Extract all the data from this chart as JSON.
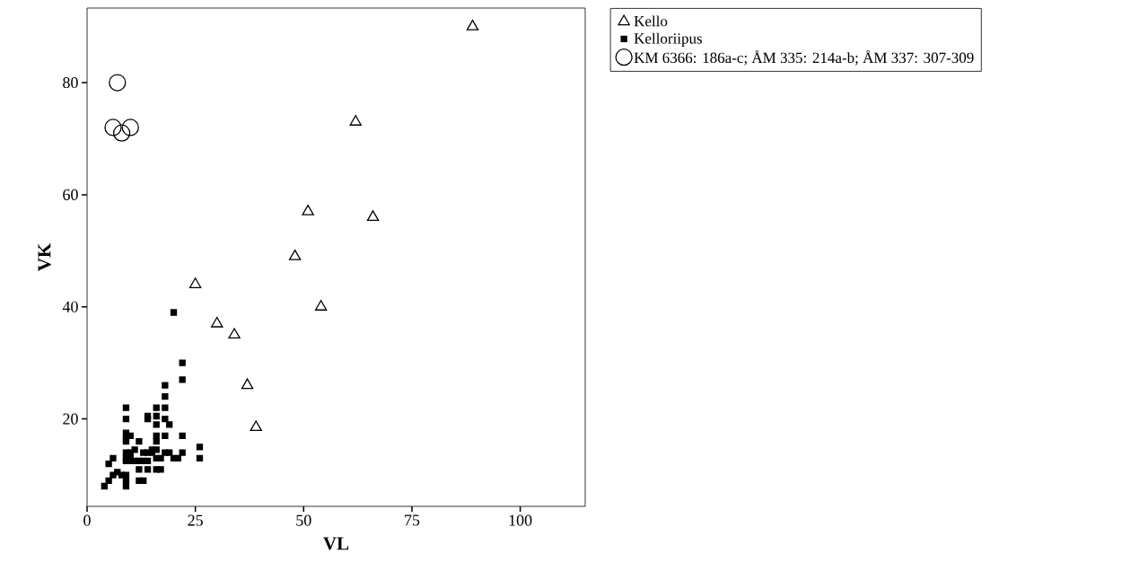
{
  "chart_data": {
    "type": "scatter",
    "xlabel": "VL",
    "ylabel": "VK",
    "xlim": [
      0,
      115
    ],
    "ylim": [
      4.4,
      93.3
    ],
    "xticks": [
      0,
      25,
      50,
      75,
      100
    ],
    "yticks": [
      20,
      40,
      60,
      80
    ],
    "legend": "top right",
    "grid": false,
    "series": [
      {
        "name": "Kello",
        "color": "#000000",
        "marker": "triangle",
        "x": [
          89,
          62,
          51,
          66,
          48,
          25,
          54,
          30,
          34,
          37,
          39
        ],
        "values": [
          90,
          73,
          57,
          56,
          49,
          44,
          40,
          37,
          35,
          26,
          18.5
        ]
      },
      {
        "name": "Kelloriipus",
        "color": "#000000",
        "marker": "square",
        "x": [
          20,
          22,
          22,
          18,
          18,
          18,
          18,
          19,
          18,
          22,
          16,
          16,
          14,
          14,
          16,
          9,
          9,
          9,
          9,
          9,
          9,
          9,
          9,
          10,
          10,
          10,
          10,
          11,
          11,
          12,
          12,
          12,
          12,
          13,
          13,
          13,
          14,
          14,
          14,
          15,
          15,
          16,
          16,
          16,
          16,
          16,
          17,
          17,
          18,
          19,
          20,
          21,
          22,
          26,
          26,
          4,
          5,
          5,
          6,
          6,
          7,
          8,
          9,
          9,
          9
        ],
        "values": [
          39,
          30,
          27,
          26,
          24,
          22,
          20,
          19,
          17,
          17,
          22,
          20.5,
          20.5,
          20,
          19,
          22,
          20,
          17.5,
          16.5,
          16,
          14,
          13,
          12.5,
          17,
          14,
          13,
          12.5,
          14.5,
          12.5,
          16,
          12.5,
          11,
          9,
          9,
          12.5,
          14,
          14,
          12.5,
          11,
          14.5,
          14,
          17,
          16,
          14.5,
          13,
          11,
          11,
          13,
          14,
          14,
          13,
          13,
          14,
          15,
          13,
          8,
          9,
          12,
          13,
          10,
          10.5,
          10,
          10,
          9,
          8
        ]
      },
      {
        "name": "KM 6366: 186a-c; ÅM 335: 214a-b; ÅM 337: 307-309",
        "color": "#000000",
        "marker": "circle",
        "x": [
          7,
          6,
          8,
          10
        ],
        "values": [
          80,
          72,
          71,
          72
        ]
      }
    ]
  }
}
